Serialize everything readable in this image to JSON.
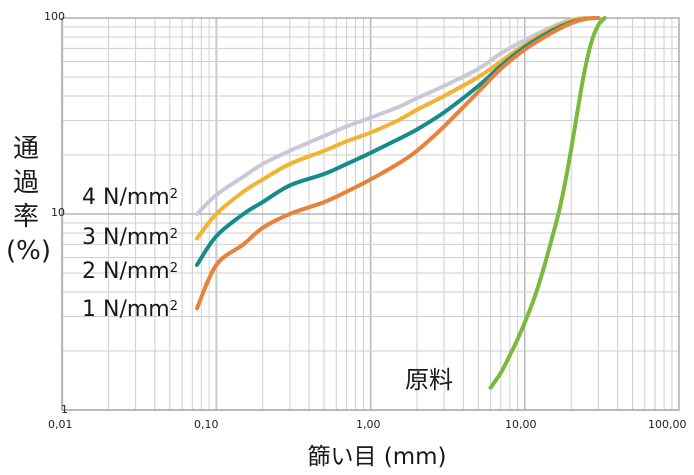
{
  "chart_data": {
    "type": "line",
    "title": "",
    "xlabel": "篩い目 (mm)",
    "ylabel": [
      "通",
      "過",
      "率",
      "(%)"
    ],
    "xscale": "log",
    "yscale": "log",
    "xlim": [
      0.01,
      100
    ],
    "ylim": [
      1,
      100
    ],
    "xticks": [
      "0,01",
      "0,10",
      "1,00",
      "10,00",
      "100,00"
    ],
    "yticks": [
      "1",
      "10",
      "100"
    ],
    "grid": true,
    "legend_position": "left",
    "series": [
      {
        "name": "4 N/mm",
        "sup": "2",
        "color": "#c8c8d8",
        "x": [
          0.075,
          0.1,
          0.15,
          0.2,
          0.3,
          0.5,
          0.7,
          1.0,
          1.5,
          2.0,
          3.0,
          5.0,
          7.0,
          10.0,
          15.0,
          20.0,
          25.0
        ],
        "y": [
          10.0,
          12.5,
          15.5,
          18.0,
          21.0,
          25.0,
          28.0,
          31.0,
          35.0,
          39.0,
          45.0,
          55.0,
          66.0,
          77.0,
          90.0,
          98.0,
          100.0
        ]
      },
      {
        "name": "3 N/mm",
        "sup": "2",
        "color": "#f2b233",
        "x": [
          0.075,
          0.1,
          0.15,
          0.2,
          0.3,
          0.5,
          0.7,
          1.0,
          1.5,
          2.0,
          3.0,
          5.0,
          7.0,
          10.0,
          15.0,
          20.0,
          25.0
        ],
        "y": [
          7.5,
          10.0,
          13.0,
          15.0,
          18.0,
          21.0,
          23.5,
          26.0,
          30.0,
          34.0,
          40.0,
          50.0,
          60.0,
          73.0,
          88.0,
          97.0,
          100.0
        ]
      },
      {
        "name": "2 N/mm",
        "sup": "2",
        "color": "#138c8a",
        "x": [
          0.075,
          0.1,
          0.15,
          0.2,
          0.3,
          0.5,
          0.7,
          1.0,
          1.5,
          2.0,
          3.0,
          5.0,
          7.0,
          10.0,
          15.0,
          20.0,
          25.0,
          30.0
        ],
        "y": [
          5.5,
          7.7,
          10.0,
          11.5,
          14.0,
          16.0,
          18.0,
          20.5,
          24.0,
          27.0,
          33.0,
          45.0,
          57.0,
          71.0,
          86.0,
          95.0,
          99.0,
          100.0
        ]
      },
      {
        "name": "1 N/mm",
        "sup": "2",
        "color": "#e8823a",
        "x": [
          0.075,
          0.1,
          0.15,
          0.2,
          0.3,
          0.5,
          0.7,
          1.0,
          1.5,
          2.0,
          3.0,
          5.0,
          7.0,
          10.0,
          15.0,
          20.0,
          25.0,
          30.0
        ],
        "y": [
          3.3,
          5.5,
          7.0,
          8.5,
          10.0,
          11.5,
          13.0,
          15.0,
          18.0,
          21.0,
          28.0,
          42.0,
          55.0,
          69.0,
          84.0,
          94.0,
          99.0,
          100.0
        ]
      },
      {
        "name": "原料",
        "color": "#7cb83a",
        "x": [
          6.0,
          7.0,
          8.0,
          9.0,
          10.0,
          11.5,
          13.0,
          15.0,
          17.0,
          19.0,
          21.0,
          24.0,
          27.0,
          30.0,
          33.0
        ],
        "y": [
          1.3,
          1.55,
          1.9,
          2.3,
          2.8,
          3.7,
          5.0,
          7.5,
          11.0,
          17.0,
          27.0,
          50.0,
          75.0,
          92.0,
          100.0
        ]
      }
    ]
  }
}
